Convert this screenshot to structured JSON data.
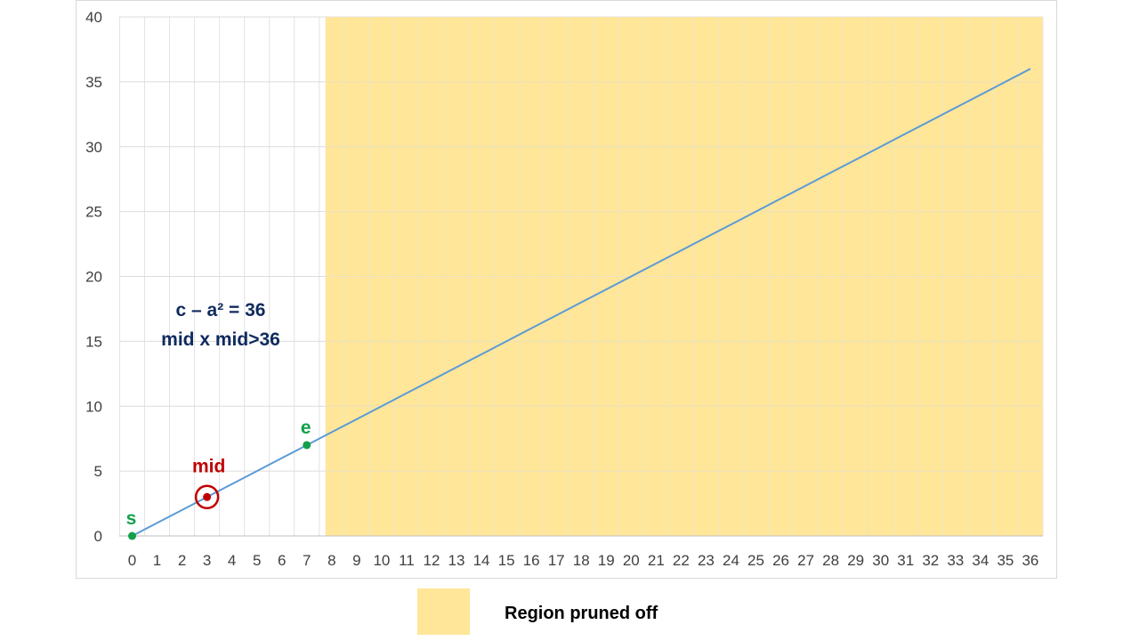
{
  "chart_data": {
    "type": "line",
    "x": [
      0,
      1,
      2,
      3,
      4,
      5,
      6,
      7,
      8,
      9,
      10,
      11,
      12,
      13,
      14,
      15,
      16,
      17,
      18,
      19,
      20,
      21,
      22,
      23,
      24,
      25,
      26,
      27,
      28,
      29,
      30,
      31,
      32,
      33,
      34,
      35,
      36
    ],
    "series": [
      {
        "values": [
          0,
          1,
          2,
          3,
          4,
          5,
          6,
          7,
          8,
          9,
          10,
          11,
          12,
          13,
          14,
          15,
          16,
          17,
          18,
          19,
          20,
          21,
          22,
          23,
          24,
          25,
          26,
          27,
          28,
          29,
          30,
          31,
          32,
          33,
          34,
          35,
          36
        ]
      }
    ],
    "xlim": [
      0,
      36
    ],
    "ylim": [
      0,
      40
    ],
    "yticks": [
      0,
      5,
      10,
      15,
      20,
      25,
      30,
      35,
      40
    ],
    "xlabel": "",
    "ylabel": "",
    "title": "",
    "grid": true,
    "line_color": "#5b9bd5",
    "pruned_region": {
      "x_from": 7.75,
      "x_to": 36.5,
      "color": "#ffe699"
    },
    "points": [
      {
        "label": "s",
        "x": 0,
        "y": 0,
        "color": "#12a04a"
      },
      {
        "label": "mid",
        "x": 3,
        "y": 3,
        "color": "#c00000",
        "ring": true
      },
      {
        "label": "e",
        "x": 7,
        "y": 7,
        "color": "#12a04a"
      }
    ],
    "annotations": [
      "c – a² = 36",
      "mid x mid>36"
    ],
    "legend": {
      "label": "Region pruned off",
      "color": "#ffe699",
      "placement": "bottom"
    }
  }
}
